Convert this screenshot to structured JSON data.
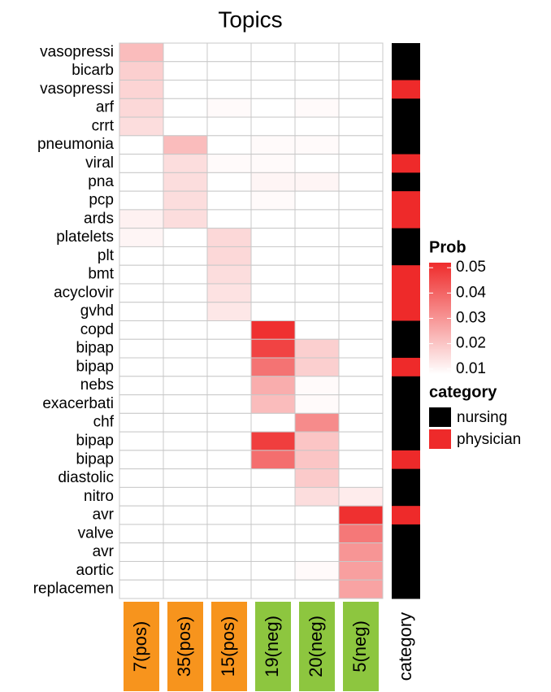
{
  "chart_data": {
    "type": "heatmap",
    "title": "Topics",
    "rows": [
      "vasopressi",
      "bicarb",
      "vasopressi",
      "arf",
      "crrt",
      "pneumonia",
      "viral",
      "pna",
      "pcp",
      "ards",
      "platelets",
      "plt",
      "bmt",
      "acyclovir",
      "gvhd",
      "copd",
      "bipap",
      "bipap",
      "nebs",
      "exacerbati",
      "chf",
      "bipap",
      "bipap",
      "diastolic",
      "nitro",
      "avr",
      "valve",
      "avr",
      "aortic",
      "replacemen"
    ],
    "columns": [
      {
        "name": "7(pos)",
        "color": "#f7941d"
      },
      {
        "name": "35(pos)",
        "color": "#f7941d"
      },
      {
        "name": "15(pos)",
        "color": "#f7941d"
      },
      {
        "name": "19(neg)",
        "color": "#8dc63f"
      },
      {
        "name": "20(neg)",
        "color": "#8dc63f"
      },
      {
        "name": "5(neg)",
        "color": "#8dc63f"
      }
    ],
    "values": [
      [
        0.022,
        0,
        0,
        0,
        0,
        0
      ],
      [
        0.018,
        0,
        0,
        0,
        0,
        0
      ],
      [
        0.017,
        0,
        0,
        0,
        0,
        0
      ],
      [
        0.016,
        0,
        0.009,
        0,
        0.009,
        0
      ],
      [
        0.015,
        0,
        0,
        0,
        0,
        0
      ],
      [
        0,
        0.022,
        0,
        0.009,
        0.009,
        0
      ],
      [
        0,
        0.015,
        0.009,
        0.009,
        0,
        0
      ],
      [
        0,
        0.015,
        0,
        0.01,
        0.01,
        0
      ],
      [
        0,
        0.015,
        0,
        0.009,
        0,
        0
      ],
      [
        0.011,
        0.015,
        0,
        0,
        0,
        0
      ],
      [
        0.01,
        0,
        0.016,
        0,
        0,
        0
      ],
      [
        0,
        0,
        0.016,
        0,
        0,
        0
      ],
      [
        0,
        0,
        0.015,
        0,
        0,
        0
      ],
      [
        0,
        0,
        0.014,
        0,
        0,
        0
      ],
      [
        0,
        0,
        0.013,
        0,
        0,
        0
      ],
      [
        0,
        0,
        0,
        0.051,
        0,
        0
      ],
      [
        0,
        0,
        0,
        0.047,
        0.018,
        0
      ],
      [
        0,
        0,
        0,
        0.037,
        0.018,
        0
      ],
      [
        0,
        0,
        0,
        0.025,
        0.009,
        0
      ],
      [
        0,
        0,
        0,
        0.022,
        0.009,
        0
      ],
      [
        0,
        0,
        0,
        0,
        0.032,
        0
      ],
      [
        0,
        0,
        0,
        0.048,
        0.02,
        0
      ],
      [
        0,
        0,
        0,
        0.038,
        0.02,
        0
      ],
      [
        0,
        0,
        0,
        0,
        0.019,
        0
      ],
      [
        0,
        0,
        0,
        0,
        0.015,
        0.012
      ],
      [
        0,
        0,
        0,
        0,
        0,
        0.051
      ],
      [
        0,
        0,
        0,
        0,
        0,
        0.036
      ],
      [
        0,
        0,
        0,
        0,
        0,
        0.03
      ],
      [
        0,
        0,
        0,
        0,
        0.009,
        0.028
      ],
      [
        0,
        0,
        0,
        0,
        0,
        0.027
      ]
    ],
    "side": {
      "label": "category",
      "values": [
        "nursing",
        "nursing",
        "physician",
        "nursing",
        "nursing",
        "nursing",
        "physician",
        "nursing",
        "physician",
        "physician",
        "nursing",
        "nursing",
        "physician",
        "physician",
        "physician",
        "nursing",
        "nursing",
        "physician",
        "nursing",
        "nursing",
        "nursing",
        "nursing",
        "physician",
        "nursing",
        "nursing",
        "physician",
        "nursing",
        "nursing",
        "nursing",
        "nursing"
      ]
    },
    "legend": {
      "title": "Prob",
      "clim": [
        0.008,
        0.052
      ],
      "ticks": [
        0.01,
        0.02,
        0.03,
        0.04,
        0.05
      ],
      "low": "#ffffff",
      "high": "#ef2b2b"
    },
    "category_legend": {
      "title": "category",
      "items": [
        {
          "name": "nursing",
          "color": "#000000"
        },
        {
          "name": "physician",
          "color": "#ee2a2a"
        }
      ]
    }
  }
}
